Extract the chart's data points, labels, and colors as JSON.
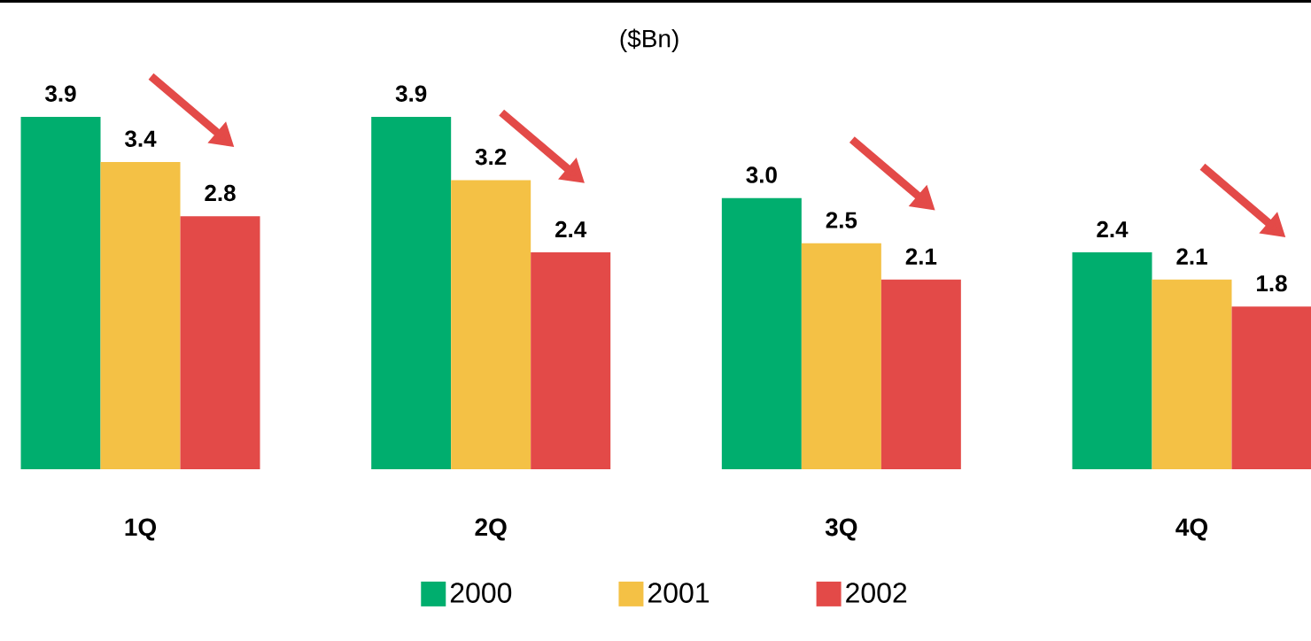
{
  "chart_data": {
    "type": "bar",
    "title": "($Bn)",
    "categories": [
      "1Q",
      "2Q",
      "3Q",
      "4Q"
    ],
    "series": [
      {
        "name": "2000",
        "color": "#00ae6e",
        "values": [
          3.9,
          3.9,
          3.0,
          2.4
        ],
        "value_labels": [
          "3.9",
          "3.9",
          "3.0",
          "2.4"
        ]
      },
      {
        "name": "2001",
        "color": "#f4c145",
        "values": [
          3.4,
          3.2,
          2.5,
          2.1
        ],
        "value_labels": [
          "3.4",
          "3.2",
          "2.5",
          "2.1"
        ]
      },
      {
        "name": "2002",
        "color": "#e34a48",
        "values": [
          2.8,
          2.4,
          2.1,
          1.8
        ],
        "value_labels": [
          "2.8",
          "2.4",
          "2.1",
          "1.8"
        ]
      }
    ],
    "legend": "bottom"
  }
}
